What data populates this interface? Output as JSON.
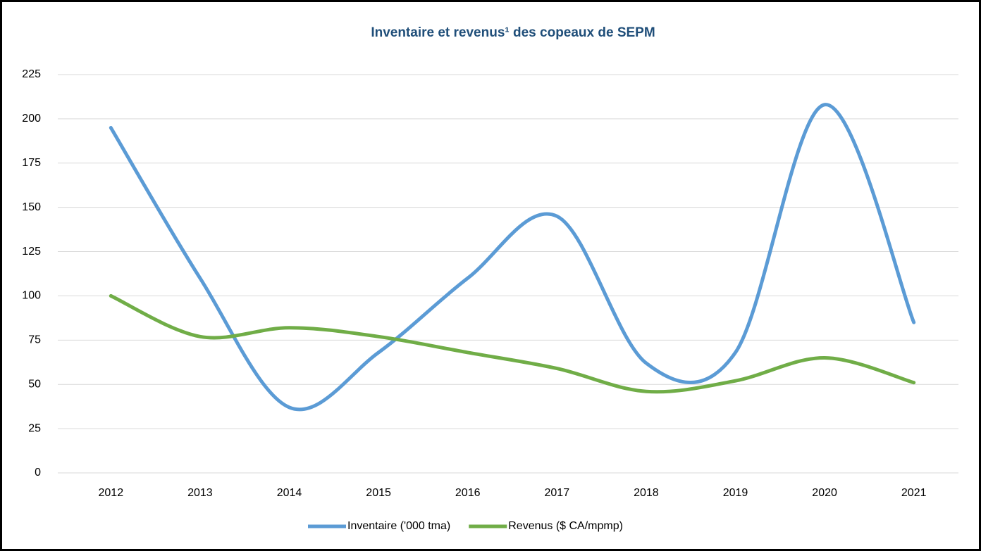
{
  "chart_data": {
    "type": "line",
    "title": "Inventaire et revenus¹ des copeaux de SEPM",
    "categories": [
      "2012",
      "2013",
      "2014",
      "2015",
      "2016",
      "2017",
      "2018",
      "2019",
      "2020",
      "2021"
    ],
    "series": [
      {
        "name": "Inventaire ('000 tma)",
        "color": "#5b9bd5",
        "values": [
          195,
          110,
          37,
          68,
          110,
          145,
          62,
          68,
          208,
          85
        ]
      },
      {
        "name": "Revenus ($ CA/mpmp)",
        "color": "#70ad47",
        "values": [
          100,
          77,
          82,
          77,
          68,
          59,
          46,
          52,
          65,
          51
        ]
      }
    ],
    "ylim": [
      0,
      225
    ],
    "yticks": [
      0,
      25,
      50,
      75,
      100,
      125,
      150,
      175,
      200,
      225
    ],
    "grid": true,
    "smooth": true,
    "legend": "bottom"
  }
}
